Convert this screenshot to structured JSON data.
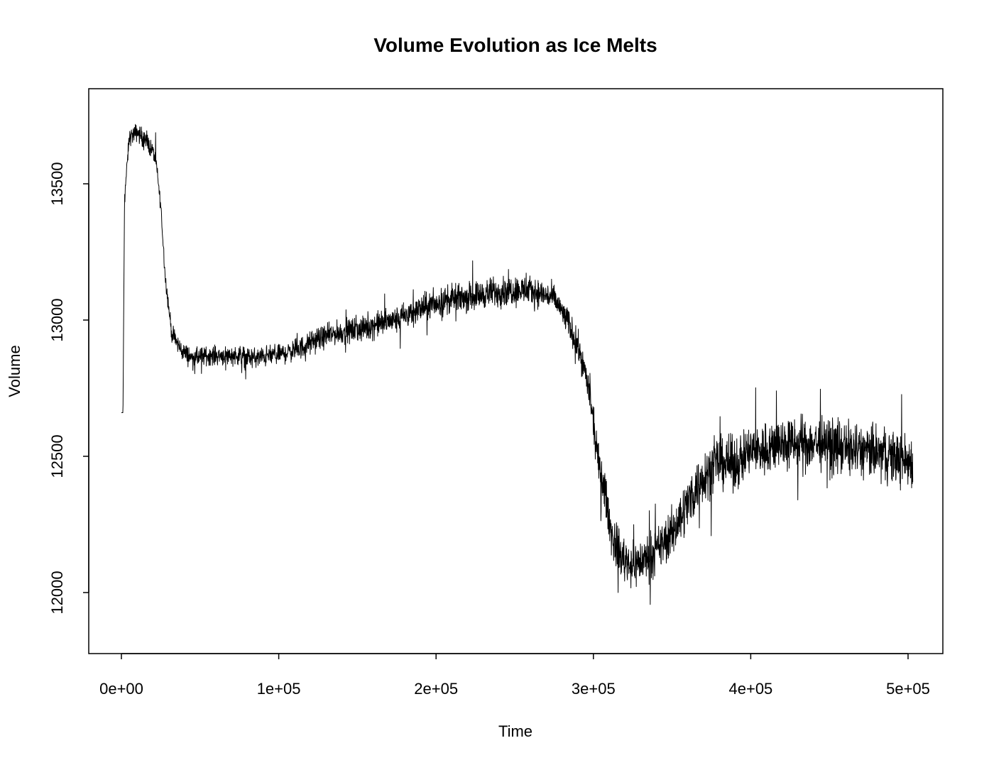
{
  "chart_data": {
    "type": "line",
    "title": "Volume Evolution as Ice Melts",
    "xlabel": "Time",
    "ylabel": "Volume",
    "xlim": [
      0,
      503000
    ],
    "ylim": [
      11830,
      13780
    ],
    "grid": false,
    "x_ticks": [
      0,
      100000,
      200000,
      300000,
      400000,
      500000
    ],
    "x_tick_labels": [
      "0e+00",
      "1e+05",
      "2e+05",
      "3e+05",
      "4e+05",
      "5e+05"
    ],
    "y_ticks": [
      12000,
      12500,
      13000,
      13500
    ],
    "y_tick_labels": [
      "12000",
      "12500",
      "13000",
      "13500"
    ],
    "colors": {
      "line": "#000000"
    },
    "series": [
      {
        "x": [
          0,
          1000,
          2000,
          5000,
          10000,
          15000,
          20000,
          22000,
          25000,
          28000,
          32000,
          38000,
          45000,
          55000,
          65000,
          75000,
          85000,
          95000,
          105000,
          115000,
          125000,
          135000,
          145000,
          155000,
          165000,
          175000,
          185000,
          195000,
          205000,
          215000,
          225000,
          235000,
          245000,
          255000,
          265000,
          275000,
          285000,
          292000,
          297000,
          300000,
          303000,
          307000,
          312000,
          318000,
          325000,
          332000,
          340000,
          350000,
          360000,
          370000,
          380000,
          390000,
          400000,
          410000,
          420000,
          430000,
          440000,
          450000,
          460000,
          470000,
          480000,
          490000,
          500000,
          503000
        ],
        "y": [
          12660,
          12660,
          13450,
          13670,
          13690,
          13660,
          13620,
          13580,
          13420,
          13150,
          12950,
          12890,
          12860,
          12870,
          12870,
          12870,
          12860,
          12870,
          12880,
          12900,
          12930,
          12950,
          12960,
          12970,
          12990,
          13000,
          13030,
          13050,
          13070,
          13080,
          13090,
          13100,
          13110,
          13110,
          13100,
          13080,
          12980,
          12870,
          12750,
          12620,
          12480,
          12380,
          12200,
          12130,
          12100,
          12120,
          12150,
          12220,
          12330,
          12430,
          12480,
          12470,
          12520,
          12530,
          12550,
          12540,
          12550,
          12540,
          12530,
          12520,
          12510,
          12500,
          12480,
          12490
        ],
        "noise_amplitude": [
          0,
          0,
          30,
          45,
          50,
          50,
          45,
          40,
          40,
          40,
          45,
          50,
          50,
          50,
          50,
          50,
          55,
          55,
          55,
          60,
          60,
          60,
          65,
          65,
          70,
          70,
          75,
          75,
          75,
          75,
          75,
          80,
          85,
          80,
          75,
          70,
          75,
          80,
          85,
          90,
          100,
          110,
          120,
          120,
          120,
          120,
          120,
          130,
          140,
          140,
          140,
          140,
          140,
          140,
          145,
          145,
          145,
          145,
          145,
          145,
          145,
          145,
          145,
          145
        ]
      }
    ]
  }
}
